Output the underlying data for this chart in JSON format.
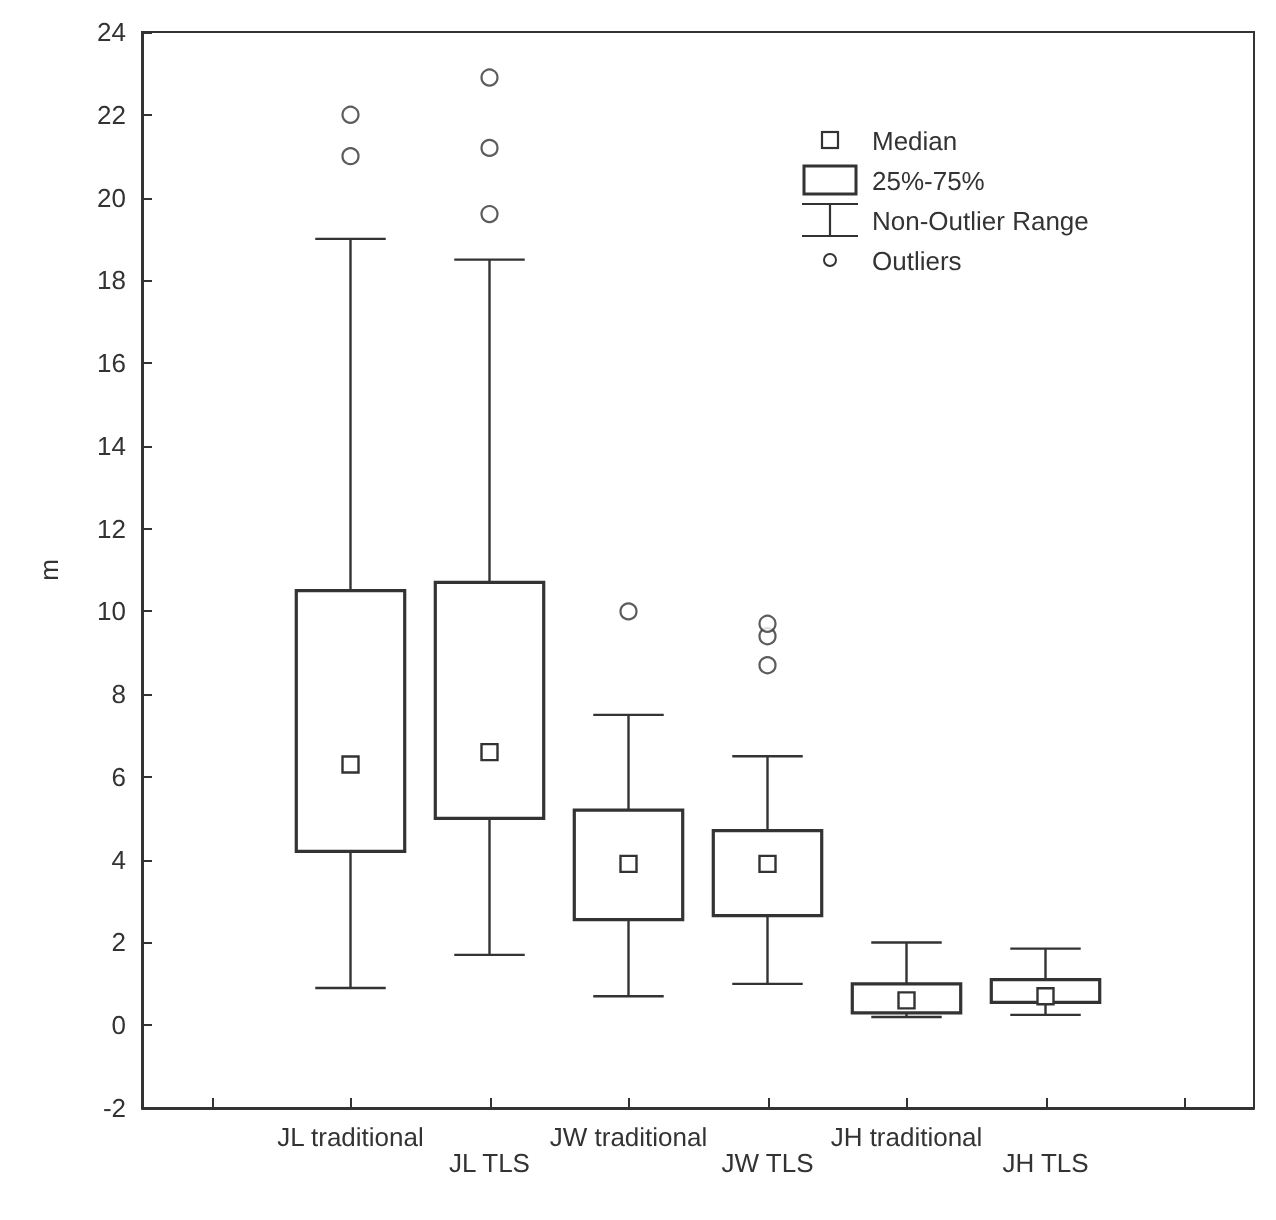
{
  "chart_data": {
    "type": "box",
    "ylabel": "m",
    "categories": [
      null,
      "JL traditional",
      "JL TLS",
      "JW traditional",
      "JW TLS",
      "JH traditional",
      "JH TLS",
      null
    ],
    "boxes": [
      null,
      {
        "low": 0.9,
        "q1": 4.2,
        "median": 6.3,
        "q3": 10.5,
        "high": 19,
        "outliers": [
          21,
          22
        ]
      },
      {
        "low": 1.7,
        "q1": 5.0,
        "median": 6.6,
        "q3": 10.7,
        "high": 18.5,
        "outliers": [
          19.6,
          21.2,
          22.9
        ]
      },
      {
        "low": 0.7,
        "q1": 2.55,
        "median": 3.9,
        "q3": 5.2,
        "high": 7.5,
        "outliers": [
          10
        ]
      },
      {
        "low": 1.0,
        "q1": 2.65,
        "median": 3.9,
        "q3": 4.7,
        "high": 6.5,
        "outliers": [
          8.7,
          9.4,
          9.7
        ]
      },
      {
        "low": 0.2,
        "q1": 0.3,
        "median": 0.6,
        "q3": 1.0,
        "high": 2.0
      },
      {
        "low": 0.25,
        "q1": 0.55,
        "median": 0.7,
        "q3": 1.1,
        "high": 1.85
      },
      null
    ],
    "color": "#333333",
    "ylim": [
      -2,
      24
    ],
    "yticks": [
      -2,
      0,
      2,
      4,
      6,
      8,
      10,
      12,
      14,
      16,
      18,
      20,
      22,
      24
    ],
    "grid": false,
    "annotations": [
      "Median",
      "25%-75%",
      "Non-Outlier Range",
      "Outliers"
    ]
  }
}
